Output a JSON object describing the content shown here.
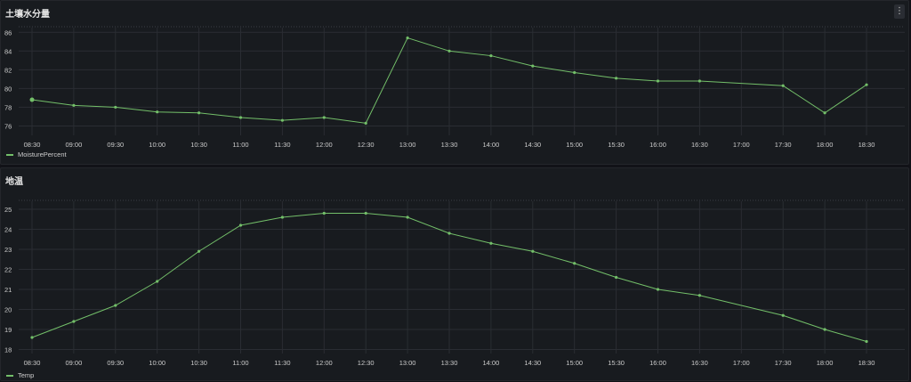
{
  "colors": {
    "series": "#73bf69",
    "grid": "#2a2d33",
    "axis_text": "#cccccc"
  },
  "panels": [
    {
      "title": "土壤水分量",
      "menu_icon": "kebab-menu-icon",
      "legend": "MoisturePercent"
    },
    {
      "title": "地温",
      "legend": "Temp"
    }
  ],
  "chart_data": [
    {
      "type": "line",
      "title": "土壤水分量",
      "categories": [
        "08:30",
        "09:00",
        "09:30",
        "10:00",
        "10:30",
        "11:00",
        "11:30",
        "12:00",
        "12:30",
        "13:00",
        "13:30",
        "14:00",
        "14:30",
        "15:00",
        "15:30",
        "16:00",
        "16:30",
        "17:00",
        "17:30",
        "18:00",
        "18:30"
      ],
      "ylim": [
        75,
        86.5
      ],
      "yticks": [
        76,
        78,
        80,
        82,
        84,
        86
      ],
      "grid": true,
      "legend_position": "bottom-left",
      "series": [
        {
          "name": "MoisturePercent",
          "x": [
            "08:30",
            "09:00",
            "09:30",
            "10:00",
            "10:30",
            "11:00",
            "11:30",
            "12:00",
            "12:30",
            "13:00",
            "13:30",
            "14:00",
            "14:30",
            "15:00",
            "15:30",
            "16:00",
            "16:30",
            "17:30",
            "18:00",
            "18:30"
          ],
          "values": [
            78.8,
            78.2,
            78.0,
            77.5,
            77.4,
            76.9,
            76.6,
            76.9,
            76.3,
            85.4,
            84.0,
            83.5,
            82.4,
            81.7,
            81.1,
            80.8,
            80.8,
            80.3,
            77.4,
            80.4
          ]
        }
      ]
    },
    {
      "type": "line",
      "title": "地温",
      "categories": [
        "08:30",
        "09:00",
        "09:30",
        "10:00",
        "10:30",
        "11:00",
        "11:30",
        "12:00",
        "12:30",
        "13:00",
        "13:30",
        "14:00",
        "14:30",
        "15:00",
        "15:30",
        "16:00",
        "16:30",
        "17:00",
        "17:30",
        "18:00",
        "18:30"
      ],
      "ylim": [
        17.8,
        25.4
      ],
      "yticks": [
        18,
        19,
        20,
        21,
        22,
        23,
        24,
        25
      ],
      "grid": true,
      "legend_position": "bottom-left",
      "series": [
        {
          "name": "Temp",
          "x": [
            "08:30",
            "09:00",
            "09:30",
            "10:00",
            "10:30",
            "11:00",
            "11:30",
            "12:00",
            "12:30",
            "13:00",
            "13:30",
            "14:00",
            "14:30",
            "15:00",
            "15:30",
            "16:00",
            "16:30",
            "17:30",
            "18:00",
            "18:30"
          ],
          "values": [
            18.6,
            19.4,
            20.2,
            21.4,
            22.9,
            24.2,
            24.6,
            24.8,
            24.8,
            24.6,
            23.8,
            23.3,
            22.9,
            22.3,
            21.6,
            21.0,
            20.7,
            19.7,
            19.0,
            18.4
          ]
        }
      ]
    }
  ]
}
